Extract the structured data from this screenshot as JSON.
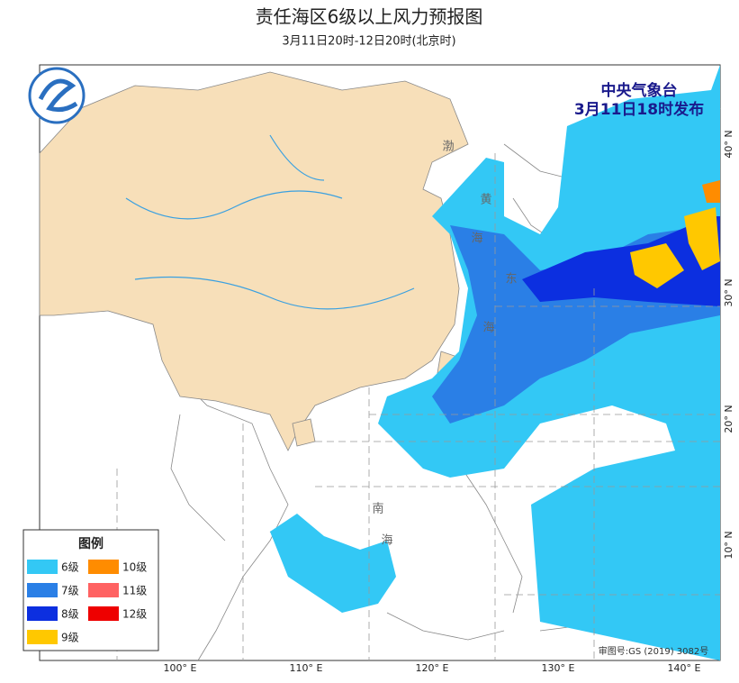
{
  "header": {
    "title": "责任海区6级以上风力预报图",
    "subtitle": "3月11日20时-12日20时(北京时)"
  },
  "issuer": {
    "name": "中央气象台",
    "time": "3月11日18时发布"
  },
  "map": {
    "longitude_labels": [
      "100° E",
      "110° E",
      "120° E",
      "130° E",
      "140° E"
    ],
    "latitude_labels": [
      "40° N",
      "30° N",
      "20° N",
      "10° N"
    ],
    "sea_labels": [
      "渤",
      "黄",
      "海",
      "东",
      "海",
      "南",
      "海"
    ],
    "approval": "审图号:GS (2019) 3082号"
  },
  "legend": {
    "title": "图例",
    "items": [
      {
        "label": "6级",
        "color": "#33c8f5"
      },
      {
        "label": "7级",
        "color": "#2a7fe6"
      },
      {
        "label": "8级",
        "color": "#0c2fe0"
      },
      {
        "label": "9级",
        "color": "#ffc800"
      },
      {
        "label": "10级",
        "color": "#ff8c00"
      },
      {
        "label": "11级",
        "color": "#ff6262"
      },
      {
        "label": "12级",
        "color": "#ee0000"
      }
    ]
  }
}
